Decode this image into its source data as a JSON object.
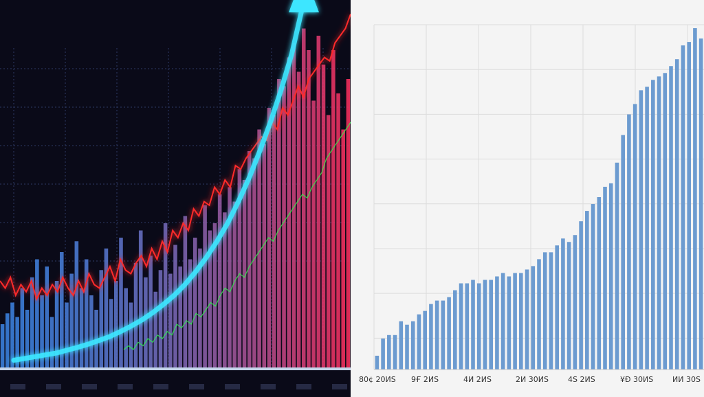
{
  "colors": {
    "left_background": "#0a0a18",
    "left_grid": "#2e3a66",
    "trend_line": "#ff2a2a",
    "secondary_line": "#2cff4a",
    "arrow": "#3ee6ff",
    "bars_low": "#3d86e6",
    "bars_high": "#ff3060",
    "right_background": "#f4f4f4",
    "right_grid": "#dcdcdc",
    "right_bars": "#6c9bd0"
  },
  "icons": {
    "trend": "up-arrow-icon"
  },
  "chart_data": [
    {
      "type": "bar",
      "title": "",
      "xlabel": "",
      "ylabel": "",
      "ylim": [
        0,
        100
      ],
      "grid": true,
      "x_tick_labels": [
        "",
        "",
        "",
        "",
        "",
        "",
        "",
        "",
        "",
        ""
      ],
      "values": [
        12,
        15,
        18,
        14,
        22,
        16,
        25,
        30,
        20,
        28,
        14,
        24,
        32,
        18,
        26,
        35,
        22,
        30,
        20,
        16,
        27,
        33,
        19,
        24,
        36,
        22,
        18,
        29,
        38,
        25,
        31,
        21,
        27,
        40,
        26,
        34,
        28,
        42,
        30,
        36,
        33,
        45,
        38,
        40,
        48,
        43,
        50,
        46,
        55,
        52,
        60,
        58,
        66,
        62,
        72,
        70,
        80,
        78,
        86,
        90,
        82,
        94,
        88,
        74,
        92,
        84,
        70,
        88,
        76,
        66,
        80
      ],
      "overlay_series": [
        {
          "name": "",
          "type": "line",
          "values": [
            24,
            22,
            25,
            20,
            23,
            21,
            24,
            19,
            22,
            20,
            23,
            21,
            25,
            22,
            20,
            24,
            21,
            26,
            23,
            22,
            25,
            28,
            24,
            30,
            27,
            26,
            29,
            31,
            28,
            33,
            30,
            35,
            32,
            38,
            36,
            40,
            38,
            44,
            42,
            46,
            45,
            50,
            48,
            52,
            50,
            56,
            55,
            58,
            60,
            62,
            64,
            63,
            68,
            66,
            72,
            70,
            74,
            78,
            75,
            80,
            82,
            84,
            86,
            85,
            90,
            92,
            94,
            98
          ]
        },
        {
          "name": "",
          "type": "line",
          "values": [
            5,
            6,
            5,
            7,
            6,
            8,
            7,
            9,
            8,
            10,
            9,
            12,
            11,
            13,
            12,
            15,
            14,
            16,
            18,
            17,
            20,
            22,
            21,
            24,
            26,
            25,
            28,
            30,
            32,
            34,
            36,
            35,
            38,
            40,
            42,
            44,
            46,
            48,
            47,
            50,
            52,
            54,
            58,
            60,
            62,
            64,
            66,
            68
          ]
        },
        {
          "name": "",
          "type": "arrow",
          "values": [
            2,
            2.5,
            3,
            3.5,
            4,
            4.8,
            5.6,
            6.5,
            7.5,
            8.6,
            10,
            11.5,
            13.2,
            15.2,
            17.5,
            20,
            23,
            26.5,
            30.5,
            35,
            40,
            46,
            52.5,
            60,
            68,
            77,
            87,
            100
          ]
        }
      ]
    },
    {
      "type": "bar",
      "title": "",
      "xlabel": "",
      "ylabel": "",
      "ylim": [
        0,
        100
      ],
      "grid": true,
      "x_tick_labels": [
        "80¢ 20ИS",
        "9Ғ 2ИS",
        "4И 2ИS",
        "2И 30ИS",
        "4S 2ИS",
        "¥Ð 30ИS",
        "ИИ 30S"
      ],
      "values": [
        4,
        9,
        10,
        10,
        14,
        13,
        14,
        16,
        17,
        19,
        20,
        20,
        21,
        23,
        25,
        25,
        26,
        25,
        26,
        26,
        27,
        28,
        27,
        28,
        28,
        29,
        30,
        32,
        34,
        34,
        36,
        38,
        37,
        39,
        43,
        46,
        48,
        50,
        53,
        54,
        60,
        68,
        74,
        77,
        81,
        82,
        84,
        85,
        86,
        88,
        90,
        94,
        95,
        99,
        96
      ],
      "fill_to_ylim_from_last": true
    }
  ]
}
